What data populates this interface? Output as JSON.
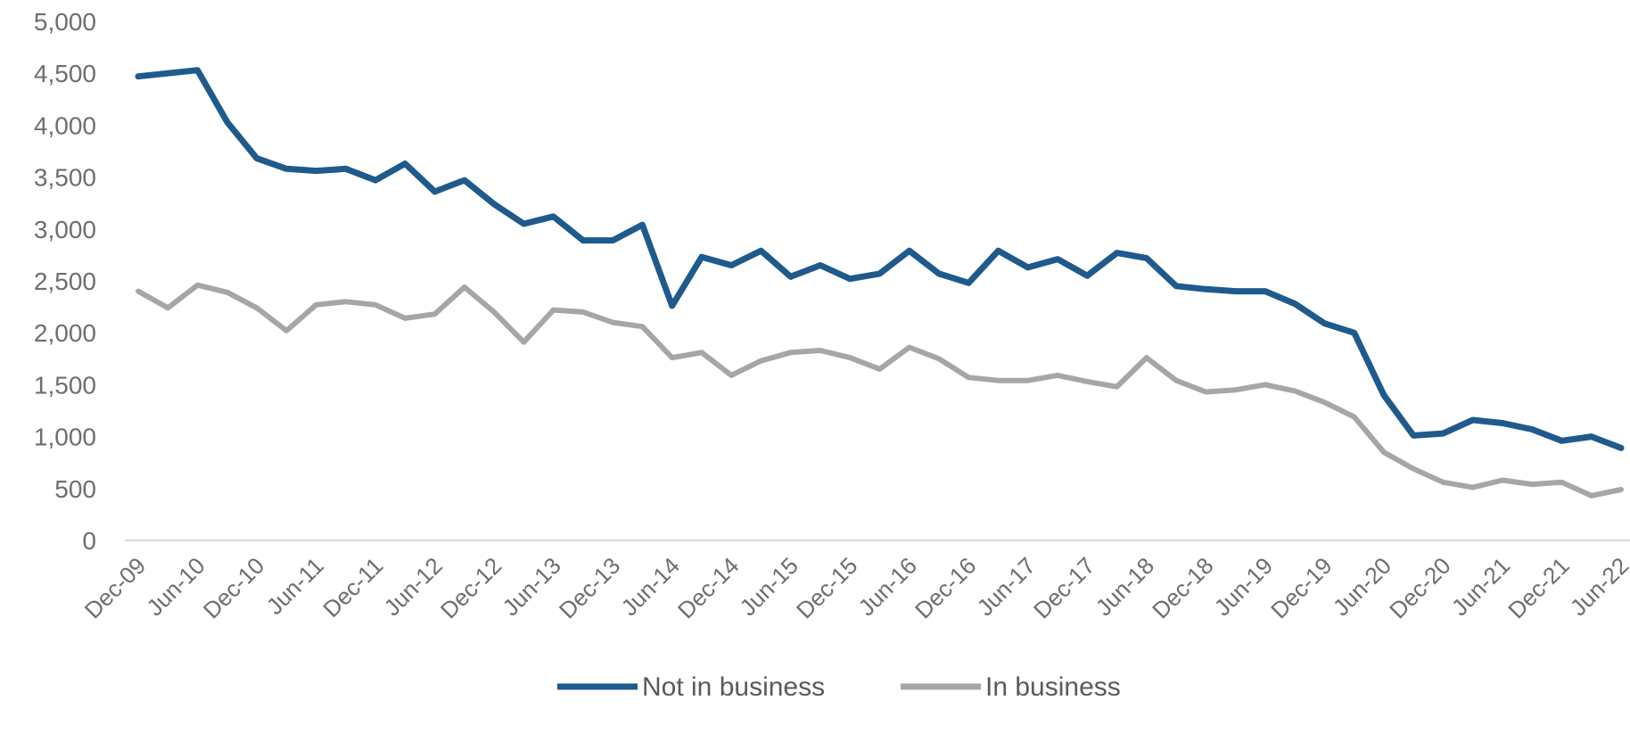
{
  "chart_data": {
    "type": "line",
    "title": "",
    "xlabel": "",
    "ylabel": "",
    "ylim": [
      0,
      5000
    ],
    "yticks": [
      "0",
      "500",
      "1,000",
      "1,500",
      "2,000",
      "2,500",
      "3,000",
      "3,500",
      "4,000",
      "4,500",
      "5,000"
    ],
    "ytick_values": [
      0,
      500,
      1000,
      1500,
      2000,
      2500,
      3000,
      3500,
      4000,
      4500,
      5000
    ],
    "x": [
      "Dec-09",
      "Mar-10",
      "Jun-10",
      "Sep-10",
      "Dec-10",
      "Mar-11",
      "Jun-11",
      "Sep-11",
      "Dec-11",
      "Mar-12",
      "Jun-12",
      "Sep-12",
      "Dec-12",
      "Mar-13",
      "Jun-13",
      "Sep-13",
      "Dec-13",
      "Mar-14",
      "Jun-14",
      "Sep-14",
      "Dec-14",
      "Mar-15",
      "Jun-15",
      "Sep-15",
      "Dec-15",
      "Mar-16",
      "Jun-16",
      "Sep-16",
      "Dec-16",
      "Mar-17",
      "Jun-17",
      "Sep-17",
      "Dec-17",
      "Mar-18",
      "Jun-18",
      "Sep-18",
      "Dec-18",
      "Mar-19",
      "Jun-19",
      "Sep-19",
      "Dec-19",
      "Mar-20",
      "Jun-20",
      "Sep-20",
      "Dec-20",
      "Mar-21",
      "Jun-21",
      "Sep-21",
      "Dec-21",
      "Mar-22",
      "Jun-22"
    ],
    "xticks": [
      "Dec-09",
      "Jun-10",
      "Dec-10",
      "Jun-11",
      "Dec-11",
      "Jun-12",
      "Dec-12",
      "Jun-13",
      "Dec-13",
      "Jun-14",
      "Dec-14",
      "Jun-15",
      "Dec-15",
      "Jun-16",
      "Dec-16",
      "Jun-17",
      "Dec-17",
      "Jun-18",
      "Dec-18",
      "Jun-19",
      "Dec-19",
      "Jun-20",
      "Dec-20",
      "Jun-21",
      "Dec-21",
      "Jun-22"
    ],
    "grid": false,
    "legend_position": "bottom",
    "series": [
      {
        "name": "Not in business",
        "color": "#1f5a8c",
        "values": [
          4470,
          4500,
          4530,
          4030,
          3680,
          3580,
          3560,
          3580,
          3470,
          3630,
          3360,
          3470,
          3240,
          3050,
          3120,
          2890,
          2890,
          3040,
          2260,
          2730,
          2650,
          2790,
          2540,
          2650,
          2520,
          2570,
          2790,
          2570,
          2480,
          2790,
          2630,
          2710,
          2550,
          2770,
          2720,
          2450,
          2420,
          2400,
          2400,
          2280,
          2090,
          2000,
          1400,
          1010,
          1030,
          1160,
          1130,
          1070,
          960,
          1000,
          890
        ]
      },
      {
        "name": "In business",
        "color": "#a6a6a6",
        "values": [
          2400,
          2240,
          2460,
          2390,
          2240,
          2020,
          2270,
          2300,
          2270,
          2140,
          2180,
          2440,
          2200,
          1910,
          2220,
          2200,
          2100,
          2060,
          1760,
          1810,
          1590,
          1730,
          1810,
          1830,
          1760,
          1650,
          1860,
          1750,
          1570,
          1540,
          1540,
          1590,
          1530,
          1480,
          1760,
          1540,
          1430,
          1450,
          1500,
          1440,
          1330,
          1190,
          850,
          690,
          560,
          510,
          580,
          540,
          560,
          430,
          490
        ]
      }
    ]
  }
}
